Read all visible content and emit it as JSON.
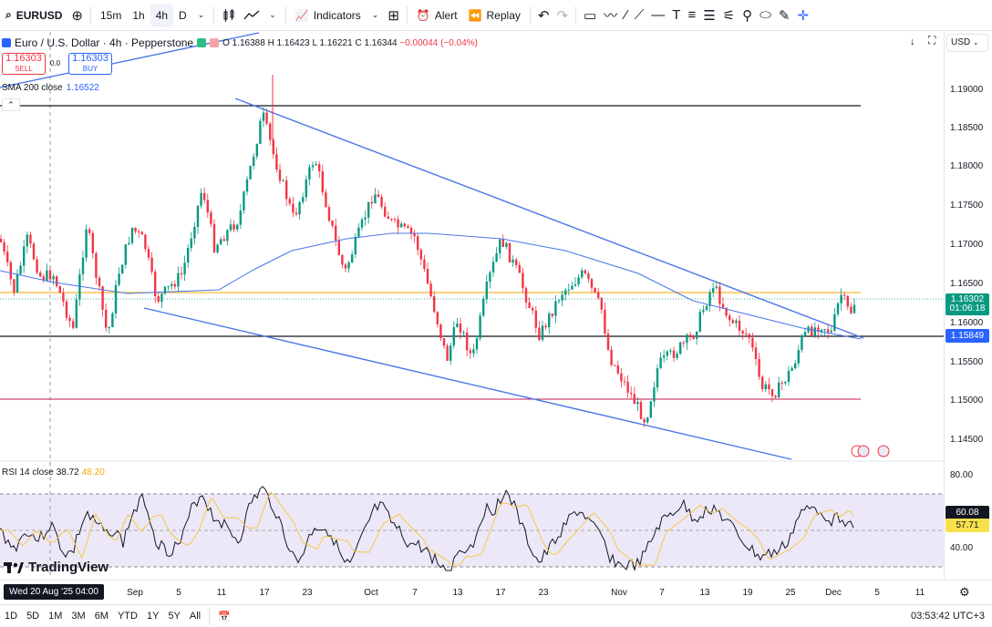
{
  "toolbar": {
    "symbol": "EURUSD",
    "timeframes": [
      "15m",
      "1h",
      "4h",
      "D"
    ],
    "active_timeframe": "4h",
    "indicators_label": "Indicators",
    "alert_label": "Alert",
    "replay_label": "Replay"
  },
  "legend": {
    "title": "Euro / U.S. Dollar · 4h · Pepperstone",
    "o": "O 1.16388",
    "h": "H 1.16423",
    "l": "L 1.16221",
    "c": "C 1.16344",
    "change": "−0.00044 (−0.04%)"
  },
  "trade": {
    "sell_price": "1.16303",
    "sell_label": "SELL",
    "buy_price": "1.16303",
    "buy_label": "BUY",
    "spread": "0.0"
  },
  "sma": {
    "label": "SMA 200 close",
    "value": "1.16522"
  },
  "rsi": {
    "label": "RSI 14 close",
    "value1": "38.72",
    "value2": "48.20"
  },
  "price_axis": {
    "currency": "USD",
    "ticks": [
      "1.19000",
      "1.18500",
      "1.18000",
      "1.17500",
      "1.17000",
      "1.16500",
      "1.16000",
      "1.15500",
      "1.15000",
      "1.14500"
    ],
    "last_price": "1.16302",
    "countdown": "01:06:18",
    "line_price": "1.15849",
    "rsi_ticks": [
      "80.00",
      "40.00"
    ],
    "rsi_value": "60.08",
    "rsi_ma_value": "57.71"
  },
  "time_axis": {
    "crosshair": "Wed 20 Aug '25   04:00",
    "labels": [
      "Sep",
      "5",
      "11",
      "17",
      "23",
      "Oct",
      "7",
      "13",
      "17",
      "23",
      "Nov",
      "7",
      "13",
      "19",
      "25",
      "Dec",
      "5",
      "11"
    ]
  },
  "bottom": {
    "ranges": [
      "1D",
      "5D",
      "1M",
      "3M",
      "6M",
      "YTD",
      "1Y",
      "5Y",
      "All"
    ],
    "clock": "03:53:42 UTC+3"
  },
  "logo": "TradingView",
  "colors": {
    "up": "#089981",
    "down": "#f23645",
    "trend": "#4a76e8",
    "sma": "#2962ff",
    "rsi_ma": "#f7c948"
  }
}
